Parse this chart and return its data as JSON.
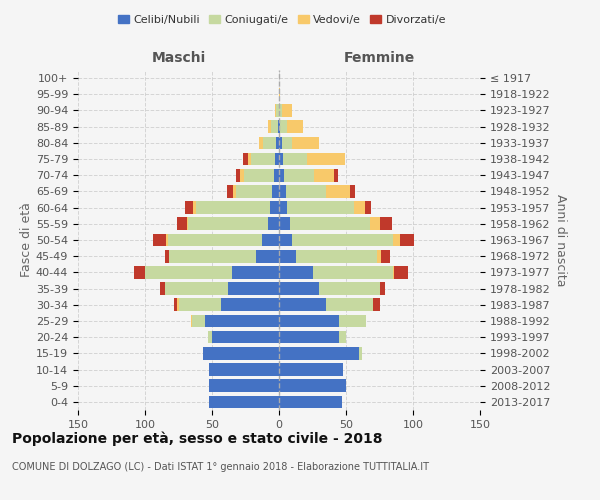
{
  "age_groups": [
    "0-4",
    "5-9",
    "10-14",
    "15-19",
    "20-24",
    "25-29",
    "30-34",
    "35-39",
    "40-44",
    "45-49",
    "50-54",
    "55-59",
    "60-64",
    "65-69",
    "70-74",
    "75-79",
    "80-84",
    "85-89",
    "90-94",
    "95-99",
    "100+"
  ],
  "birth_years": [
    "2013-2017",
    "2008-2012",
    "2003-2007",
    "1998-2002",
    "1993-1997",
    "1988-1992",
    "1983-1987",
    "1978-1982",
    "1973-1977",
    "1968-1972",
    "1963-1967",
    "1958-1962",
    "1953-1957",
    "1948-1952",
    "1943-1947",
    "1938-1942",
    "1933-1937",
    "1928-1932",
    "1923-1927",
    "1918-1922",
    "≤ 1917"
  ],
  "maschi": {
    "celibi": [
      52,
      52,
      52,
      57,
      50,
      55,
      43,
      38,
      35,
      17,
      13,
      8,
      7,
      5,
      4,
      3,
      2,
      1,
      0,
      0,
      0
    ],
    "coniugati": [
      0,
      0,
      0,
      0,
      3,
      10,
      32,
      47,
      65,
      65,
      70,
      60,
      55,
      27,
      22,
      18,
      10,
      5,
      2,
      0,
      0
    ],
    "vedovi": [
      0,
      0,
      0,
      0,
      0,
      1,
      1,
      0,
      0,
      0,
      1,
      1,
      2,
      2,
      3,
      2,
      3,
      2,
      1,
      0,
      0
    ],
    "divorziati": [
      0,
      0,
      0,
      0,
      0,
      0,
      2,
      4,
      8,
      3,
      10,
      7,
      6,
      5,
      3,
      4,
      0,
      0,
      0,
      0,
      0
    ]
  },
  "femmine": {
    "nubili": [
      47,
      50,
      48,
      60,
      45,
      45,
      35,
      30,
      25,
      13,
      10,
      8,
      6,
      5,
      4,
      3,
      2,
      1,
      0,
      0,
      0
    ],
    "coniugate": [
      0,
      0,
      0,
      2,
      5,
      20,
      35,
      45,
      60,
      60,
      75,
      60,
      50,
      30,
      22,
      18,
      8,
      5,
      2,
      0,
      0
    ],
    "vedove": [
      0,
      0,
      0,
      0,
      0,
      0,
      0,
      0,
      1,
      3,
      5,
      7,
      8,
      18,
      15,
      28,
      20,
      12,
      8,
      1,
      0
    ],
    "divorziate": [
      0,
      0,
      0,
      0,
      0,
      0,
      5,
      4,
      10,
      7,
      11,
      9,
      5,
      4,
      3,
      0,
      0,
      0,
      0,
      0,
      0
    ]
  },
  "colors": {
    "celibi_nubili": "#4472c4",
    "coniugati_e": "#c6d9a0",
    "vedovi_e": "#f8c96a",
    "divorziati_e": "#c0392b"
  },
  "xlim": 150,
  "title": "Popolazione per età, sesso e stato civile - 2018",
  "subtitle": "COMUNE DI DOLZAGO (LC) - Dati ISTAT 1° gennaio 2018 - Elaborazione TUTTITALIA.IT",
  "ylabel_left": "Fasce di età",
  "ylabel_right": "Anni di nascita",
  "xlabel_left": "Maschi",
  "xlabel_right": "Femmine",
  "bg_color": "#f5f5f5",
  "grid_color": "#cccccc"
}
